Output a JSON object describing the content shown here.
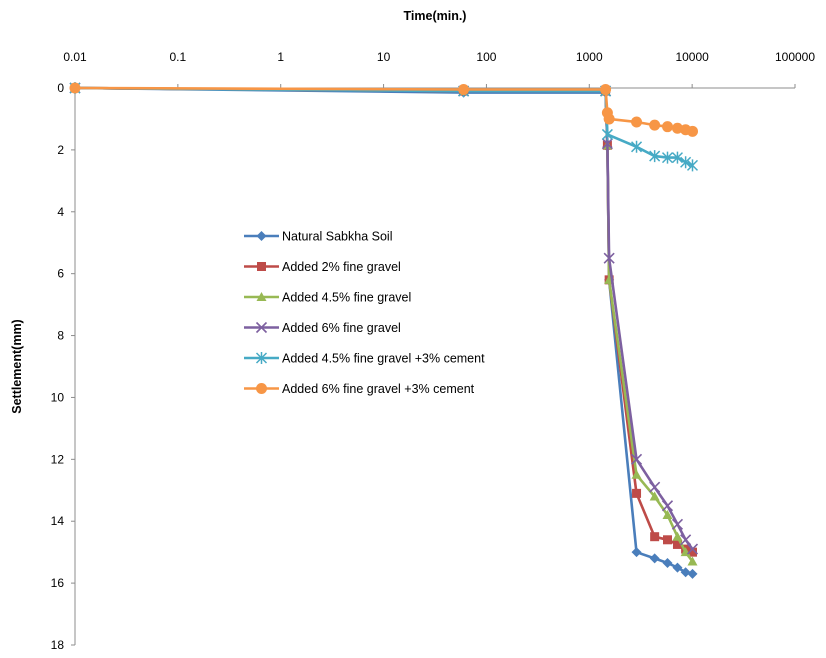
{
  "chart_data": {
    "type": "line",
    "title": "",
    "xlabel": "Time(min.)",
    "ylabel": "Settlement(mm)",
    "xscale": "log",
    "xlim": [
      0.01,
      100000
    ],
    "ylim": [
      0,
      18
    ],
    "y_inverted": true,
    "x_axis_position": "top",
    "grid": false,
    "legend_position": "center-left",
    "x_ticks": [
      "0.01",
      "0.1",
      "1",
      "10",
      "100",
      "1000",
      "10000",
      "100000"
    ],
    "y_ticks": [
      "0",
      "2",
      "4",
      "6",
      "8",
      "10",
      "12",
      "14",
      "16",
      "18"
    ],
    "series": [
      {
        "name": "Natural Sabkha Soil",
        "color": "#4a7ebb",
        "marker": "diamond",
        "x": [
          0.01,
          60,
          1440,
          1500,
          1560,
          2880,
          4320,
          5760,
          7200,
          8640,
          10080
        ],
        "y": [
          0,
          0.15,
          0.15,
          1.9,
          6.2,
          15.0,
          15.2,
          15.35,
          15.5,
          15.65,
          15.7
        ]
      },
      {
        "name": "Added 2% fine gravel",
        "color": "#be4b48",
        "marker": "square",
        "x": [
          0.01,
          60,
          1440,
          1500,
          1560,
          2880,
          4320,
          5760,
          7200,
          8640,
          10080
        ],
        "y": [
          0,
          0.1,
          0.1,
          1.85,
          6.2,
          13.1,
          14.5,
          14.6,
          14.75,
          14.9,
          15.0
        ]
      },
      {
        "name": "Added 4.5% fine gravel",
        "color": "#98b954",
        "marker": "triangle",
        "x": [
          0.01,
          60,
          1440,
          1500,
          1560,
          2880,
          4320,
          5760,
          7200,
          8640,
          10080
        ],
        "y": [
          0,
          0.1,
          0.1,
          1.85,
          6.2,
          12.5,
          13.2,
          13.8,
          14.5,
          15.0,
          15.3
        ]
      },
      {
        "name": "Added 6% fine gravel",
        "color": "#7d60a0",
        "marker": "x",
        "x": [
          0.01,
          60,
          1440,
          1500,
          1560,
          2880,
          4320,
          5760,
          7200,
          8640,
          10080
        ],
        "y": [
          0,
          0.1,
          0.1,
          1.8,
          5.5,
          12.0,
          12.9,
          13.5,
          14.1,
          14.6,
          14.9
        ]
      },
      {
        "name": "Added 4.5% fine gravel +3% cement",
        "color": "#46aac5",
        "marker": "star",
        "x": [
          0.01,
          60,
          1440,
          1500,
          2880,
          4320,
          5760,
          7200,
          8640,
          10080
        ],
        "y": [
          0,
          0.1,
          0.1,
          1.5,
          1.9,
          2.2,
          2.25,
          2.25,
          2.4,
          2.5
        ]
      },
      {
        "name": "Added 6% fine gravel +3% cement",
        "color": "#f79646",
        "marker": "circle",
        "x": [
          0.01,
          60,
          1440,
          1500,
          1560,
          2880,
          4320,
          5760,
          7200,
          8640,
          10080
        ],
        "y": [
          0,
          0.05,
          0.05,
          0.8,
          1.0,
          1.1,
          1.2,
          1.25,
          1.3,
          1.35,
          1.4
        ]
      }
    ]
  }
}
